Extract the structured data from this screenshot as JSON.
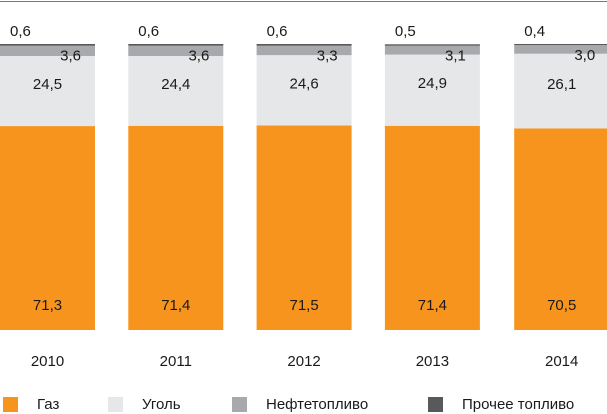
{
  "chart_data": {
    "type": "stacked_bar",
    "categories": [
      "2010",
      "2011",
      "2012",
      "2013",
      "2014"
    ],
    "ylim": [
      0,
      100
    ],
    "legend": "bottom",
    "series": [
      {
        "name": "Газ",
        "color": "#f7941d",
        "values": [
          71.3,
          71.4,
          71.5,
          71.4,
          70.5
        ],
        "value_labels": [
          "71,3",
          "71,4",
          "71,5",
          "71,4",
          "70,5"
        ]
      },
      {
        "name": "Уголь",
        "color": "#e6e7e8",
        "values": [
          24.5,
          24.4,
          24.6,
          24.9,
          26.1
        ],
        "value_labels": [
          "24,5",
          "24,4",
          "24,6",
          "24,9",
          "26,1"
        ]
      },
      {
        "name": "Нефтетопливо",
        "color": "#a7a9ac",
        "values": [
          3.6,
          3.6,
          3.3,
          3.1,
          3.0
        ],
        "value_labels": [
          "3,6",
          "3,6",
          "3,3",
          "3,1",
          "3,0"
        ]
      },
      {
        "name": "Прочее топливо",
        "color": "#58595b",
        "values": [
          0.6,
          0.6,
          0.6,
          0.5,
          0.4
        ],
        "value_labels": [
          "0,6",
          "0,6",
          "0,6",
          "0,5",
          "0,4"
        ]
      }
    ]
  }
}
